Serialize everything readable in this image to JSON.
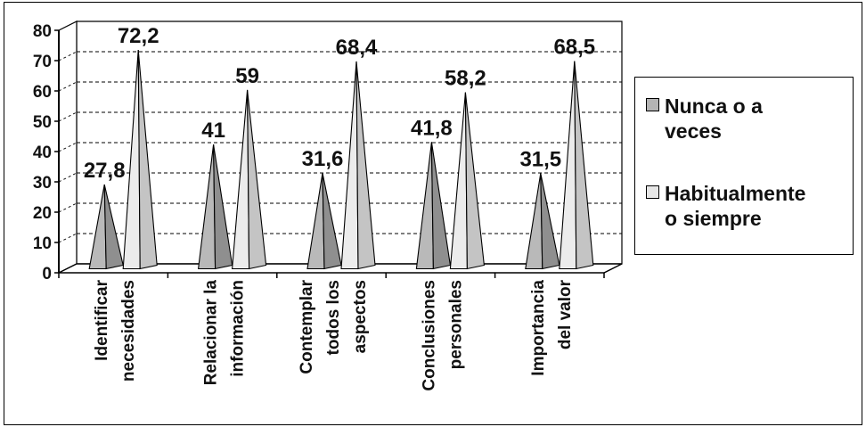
{
  "chart_data": {
    "type": "bar",
    "bar_shape": "3d-cone",
    "categories": [
      "Identificar necesidades",
      "Relacionar la información",
      "Contemplar todos los aspectos",
      "Conclusiones personales",
      "Importancia del valor"
    ],
    "category_lines": [
      [
        "Identificar",
        "necesidades"
      ],
      [
        "Relacionar la",
        "información"
      ],
      [
        "Contemplar",
        "todos los",
        "aspectos"
      ],
      [
        "Conclusiones",
        "personales"
      ],
      [
        "Importancia",
        "del valor"
      ]
    ],
    "series": [
      {
        "name_lines": [
          "Nunca o a",
          "veces"
        ],
        "name": "Nunca o a veces",
        "color": "#b4b4b4",
        "values": [
          27.8,
          41,
          31.6,
          41.8,
          31.5
        ],
        "labels": [
          "27,8",
          "41",
          "31,6",
          "41,8",
          "31,5"
        ]
      },
      {
        "name_lines": [
          "Habitualmente",
          "o siempre"
        ],
        "name": "Habitualmente o siempre",
        "color": "#e6e6e6",
        "values": [
          72.2,
          59,
          68.4,
          58.2,
          68.5
        ],
        "labels": [
          "72,2",
          "59",
          "68,4",
          "58,2",
          "68,5"
        ]
      }
    ],
    "ylim": [
      0,
      80
    ],
    "yticks": [
      0,
      10,
      20,
      30,
      40,
      50,
      60,
      70,
      80
    ],
    "xlabel": "",
    "ylabel": "",
    "grid": true,
    "legend_position": "right"
  }
}
